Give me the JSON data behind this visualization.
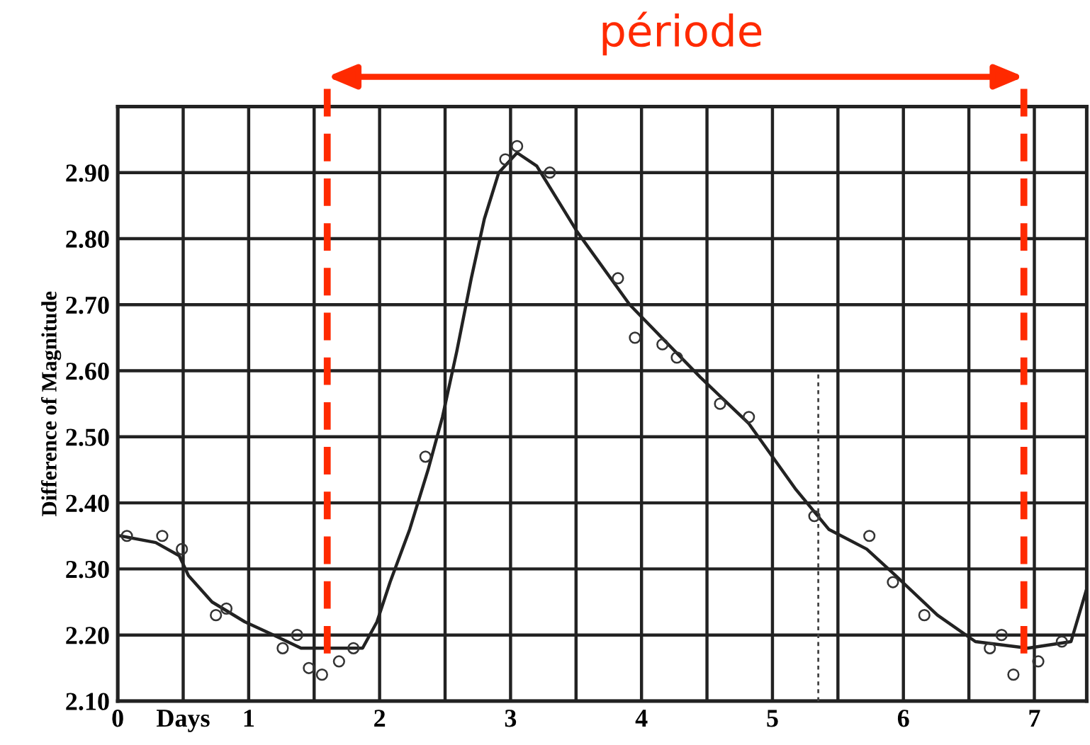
{
  "chart_data": {
    "type": "line",
    "ylabel": "Difference of Magnitude",
    "annotations": [
      "période"
    ],
    "xlim": [
      0,
      7.4
    ],
    "ylim": [
      2.1,
      3.0
    ],
    "xticks": [
      {
        "value": 0,
        "label": "0"
      },
      {
        "value": 0.5,
        "label": "Days"
      },
      {
        "value": 1,
        "label": "1"
      },
      {
        "value": 1.5,
        "label": null
      },
      {
        "value": 2,
        "label": "2"
      },
      {
        "value": 2.5,
        "label": null
      },
      {
        "value": 3,
        "label": "3"
      },
      {
        "value": 3.5,
        "label": null
      },
      {
        "value": 4,
        "label": "4"
      },
      {
        "value": 4.5,
        "label": null
      },
      {
        "value": 5,
        "label": "5"
      },
      {
        "value": 5.5,
        "label": null
      },
      {
        "value": 6,
        "label": "6"
      },
      {
        "value": 6.5,
        "label": null
      },
      {
        "value": 7,
        "label": "7"
      }
    ],
    "yticks": [
      {
        "value": 2.1,
        "label": "2.10"
      },
      {
        "value": 2.2,
        "label": "2.20"
      },
      {
        "value": 2.3,
        "label": "2.30"
      },
      {
        "value": 2.4,
        "label": "2.40"
      },
      {
        "value": 2.5,
        "label": "2.50"
      },
      {
        "value": 2.6,
        "label": "2.60"
      },
      {
        "value": 2.7,
        "label": "2.70"
      },
      {
        "value": 2.8,
        "label": "2.80"
      },
      {
        "value": 2.9,
        "label": "2.90"
      },
      {
        "value": 3.0,
        "label": null
      }
    ],
    "grid": true,
    "series": [
      {
        "color": "#222222",
        "marker": "none",
        "x": [
          0.02,
          0.29,
          0.47,
          0.54,
          0.72,
          0.97,
          1.19,
          1.4,
          1.62,
          1.87,
          1.98,
          2.08,
          2.23,
          2.37,
          2.48,
          2.59,
          2.7,
          2.8,
          2.91,
          3.05,
          3.2,
          3.51,
          3.91,
          4.45,
          4.82,
          5.18,
          5.43,
          5.72,
          5.94,
          6.26,
          6.55,
          6.95,
          7.28,
          7.4
        ],
        "values": [
          2.35,
          2.34,
          2.32,
          2.29,
          2.25,
          2.22,
          2.2,
          2.18,
          2.18,
          2.18,
          2.22,
          2.28,
          2.36,
          2.45,
          2.53,
          2.63,
          2.74,
          2.83,
          2.9,
          2.93,
          2.91,
          2.81,
          2.7,
          2.59,
          2.52,
          2.42,
          2.36,
          2.33,
          2.29,
          2.23,
          2.19,
          2.18,
          2.19,
          2.27
        ]
      },
      {
        "type": "scatter",
        "color": "#333333",
        "marker": "circle",
        "x": [
          0.07,
          0.34,
          0.49,
          0.75,
          0.83,
          1.26,
          1.37,
          1.46,
          1.56,
          1.69,
          1.8,
          2.35,
          2.96,
          3.05,
          3.3,
          3.82,
          3.95,
          4.16,
          4.27,
          4.6,
          4.82,
          5.32,
          5.74,
          5.92,
          6.16,
          6.66,
          6.75,
          6.84,
          7.03,
          7.21
        ],
        "values": [
          2.35,
          2.35,
          2.33,
          2.23,
          2.24,
          2.18,
          2.2,
          2.15,
          2.14,
          2.16,
          2.18,
          2.47,
          2.92,
          2.94,
          2.9,
          2.74,
          2.65,
          2.64,
          2.62,
          2.55,
          2.53,
          2.38,
          2.35,
          2.28,
          2.23,
          2.18,
          2.2,
          2.14,
          2.16,
          2.19
        ]
      }
    ],
    "ref_lines": [
      {
        "axis": "x",
        "value": 1.6,
        "label": null,
        "color": "#ff2a00",
        "line_style": "dashed"
      },
      {
        "axis": "x",
        "value": 6.92,
        "label": null,
        "color": "#ff2a00",
        "line_style": "dashed"
      },
      {
        "axis": "x",
        "value": 5.35,
        "label": null,
        "color": "#444444",
        "line_style": "dotted"
      }
    ]
  }
}
